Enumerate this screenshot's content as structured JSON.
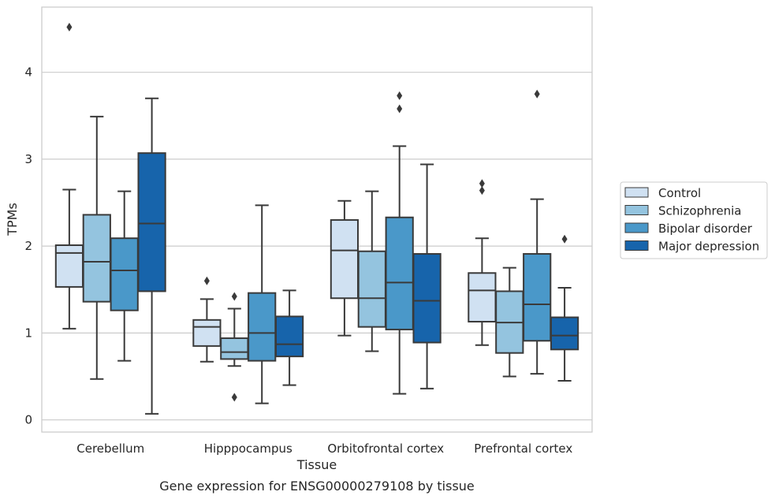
{
  "caption": "Gene expression for ENSG00000279108 by tissue",
  "chart_data": {
    "type": "boxplot",
    "title": "",
    "xlabel": "Tissue",
    "ylabel": "TPMs",
    "ylim": [
      -0.14,
      4.75
    ],
    "yticks": [
      0,
      1,
      2,
      3,
      4
    ],
    "grid": "horizontal",
    "legend_position": "right",
    "categories": [
      "Cerebellum",
      "Hipppocampus",
      "Orbitofrontal cortex",
      "Prefrontal cortex"
    ],
    "series": [
      {
        "name": "Control",
        "color": "#d0e1f2",
        "boxes": [
          {
            "whisker_low": 1.05,
            "q1": 1.53,
            "median": 1.92,
            "q3": 2.01,
            "whisker_high": 2.65,
            "outliers": [
              4.52
            ]
          },
          {
            "whisker_low": 0.67,
            "q1": 0.85,
            "median": 1.07,
            "q3": 1.15,
            "whisker_high": 1.39,
            "outliers": [
              1.6
            ]
          },
          {
            "whisker_low": 0.97,
            "q1": 1.4,
            "median": 1.95,
            "q3": 2.3,
            "whisker_high": 2.52,
            "outliers": []
          },
          {
            "whisker_low": 0.86,
            "q1": 1.13,
            "median": 1.49,
            "q3": 1.69,
            "whisker_high": 2.09,
            "outliers": [
              2.64,
              2.72
            ]
          }
        ]
      },
      {
        "name": "Schizophrenia",
        "color": "#94c4df",
        "boxes": [
          {
            "whisker_low": 0.47,
            "q1": 1.36,
            "median": 1.82,
            "q3": 2.36,
            "whisker_high": 3.49,
            "outliers": []
          },
          {
            "whisker_low": 0.62,
            "q1": 0.7,
            "median": 0.78,
            "q3": 0.94,
            "whisker_high": 1.28,
            "outliers": [
              1.42,
              0.26
            ]
          },
          {
            "whisker_low": 0.79,
            "q1": 1.07,
            "median": 1.4,
            "q3": 1.94,
            "whisker_high": 2.63,
            "outliers": []
          },
          {
            "whisker_low": 0.5,
            "q1": 0.77,
            "median": 1.12,
            "q3": 1.48,
            "whisker_high": 1.75,
            "outliers": []
          }
        ]
      },
      {
        "name": "Bipolar disorder",
        "color": "#4a98c9",
        "boxes": [
          {
            "whisker_low": 0.68,
            "q1": 1.26,
            "median": 1.72,
            "q3": 2.09,
            "whisker_high": 2.63,
            "outliers": []
          },
          {
            "whisker_low": 0.19,
            "q1": 0.68,
            "median": 1.0,
            "q3": 1.46,
            "whisker_high": 2.47,
            "outliers": []
          },
          {
            "whisker_low": 0.3,
            "q1": 1.04,
            "median": 1.58,
            "q3": 2.33,
            "whisker_high": 3.15,
            "outliers": [
              3.58,
              3.73
            ]
          },
          {
            "whisker_low": 0.53,
            "q1": 0.91,
            "median": 1.33,
            "q3": 1.91,
            "whisker_high": 2.54,
            "outliers": [
              3.75
            ]
          }
        ]
      },
      {
        "name": "Major depression",
        "color": "#1764ab",
        "boxes": [
          {
            "whisker_low": 0.07,
            "q1": 1.48,
            "median": 2.26,
            "q3": 3.07,
            "whisker_high": 3.7,
            "outliers": []
          },
          {
            "whisker_low": 0.4,
            "q1": 0.73,
            "median": 0.87,
            "q3": 1.19,
            "whisker_high": 1.49,
            "outliers": []
          },
          {
            "whisker_low": 0.36,
            "q1": 0.89,
            "median": 1.37,
            "q3": 1.91,
            "whisker_high": 2.94,
            "outliers": []
          },
          {
            "whisker_low": 0.45,
            "q1": 0.81,
            "median": 0.97,
            "q3": 1.18,
            "whisker_high": 1.52,
            "outliers": [
              2.08
            ]
          }
        ]
      }
    ]
  }
}
